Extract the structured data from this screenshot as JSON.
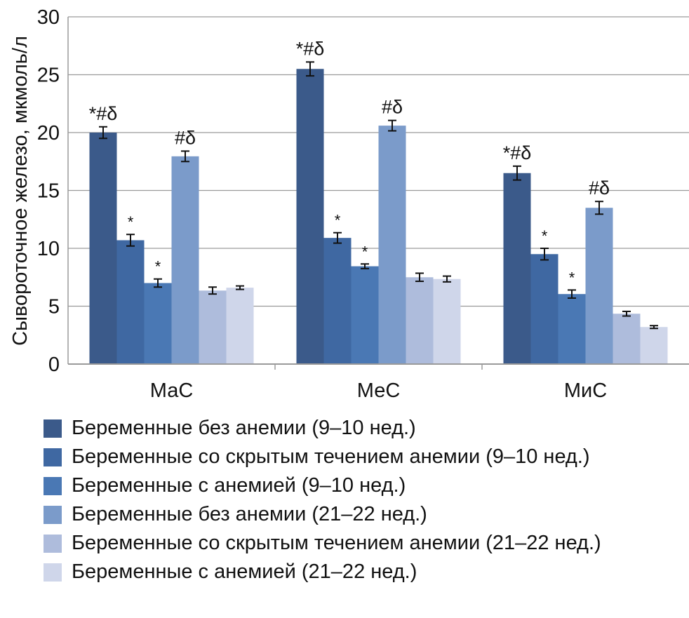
{
  "chart_data": {
    "type": "bar",
    "title": "",
    "xlabel": "",
    "ylabel": "Сывороточное железо, мкмоль/л",
    "ylim": [
      0,
      30
    ],
    "yticks": [
      "0",
      "5",
      "10",
      "15",
      "20",
      "25",
      "30"
    ],
    "grid": true,
    "legend_position": "bottom",
    "categories": [
      "МаС",
      "МеС",
      "МиС"
    ],
    "series": [
      {
        "name": "Беременные без анемии (9–10 нед.)",
        "color": "#3b5a8a",
        "values": [
          20.0,
          25.5,
          16.5
        ],
        "errors": [
          0.5,
          0.6,
          0.6
        ],
        "annotations": [
          "*#δ",
          "*#δ",
          "*#δ"
        ]
      },
      {
        "name": "Беременные со скрытым течением анемии (9–10 нед.)",
        "color": "#3f68a2",
        "values": [
          10.7,
          10.9,
          9.5
        ],
        "errors": [
          0.5,
          0.45,
          0.5
        ],
        "annotations": [
          "*",
          "*",
          "*"
        ]
      },
      {
        "name": "Беременные с анемией (9–10 нед.)",
        "color": "#4a78b4",
        "values": [
          7.0,
          8.45,
          6.05
        ],
        "errors": [
          0.35,
          0.2,
          0.35
        ],
        "annotations": [
          "*",
          "*",
          "*"
        ]
      },
      {
        "name": "Беременные без анемии (21–22 нед.)",
        "color": "#7b9bca",
        "values": [
          17.95,
          20.6,
          13.5
        ],
        "errors": [
          0.45,
          0.45,
          0.55
        ],
        "annotations": [
          "#δ",
          "#δ",
          "#δ"
        ]
      },
      {
        "name": "Беременные со скрытым течением анемии (21–22 нед.)",
        "color": "#aebcdc",
        "values": [
          6.35,
          7.5,
          4.35
        ],
        "errors": [
          0.3,
          0.35,
          0.2
        ],
        "annotations": [
          "",
          "",
          ""
        ]
      },
      {
        "name": "Беременные с анемией (21–22 нед.)",
        "color": "#cfd6ea",
        "values": [
          6.6,
          7.35,
          3.2
        ],
        "errors": [
          0.15,
          0.25,
          0.12
        ],
        "annotations": [
          "",
          "",
          ""
        ]
      }
    ]
  }
}
